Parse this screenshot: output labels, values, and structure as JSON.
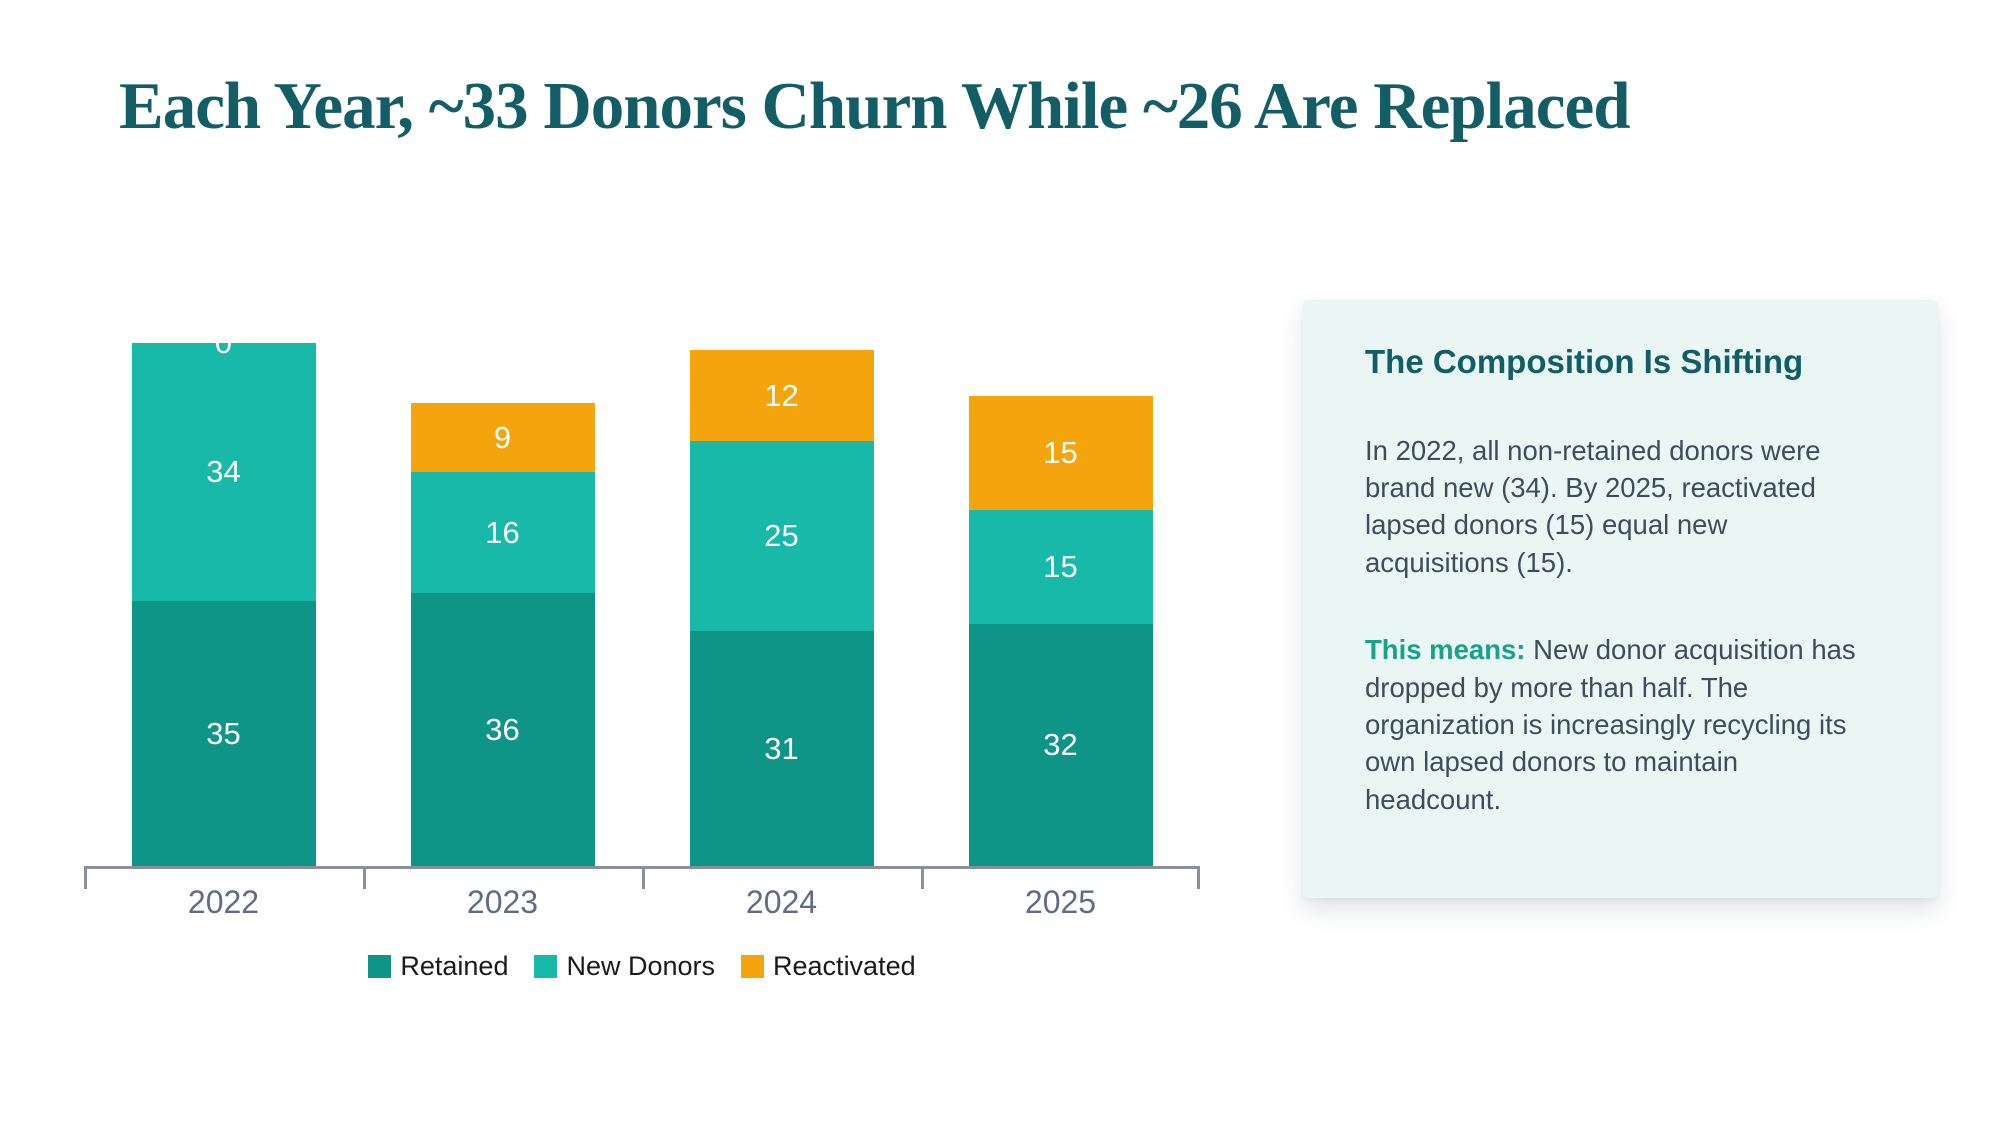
{
  "page": {
    "title": "Each Year, ~33 Donors Churn While ~26 Are Replaced"
  },
  "chart_data": {
    "type": "bar",
    "stacked": true,
    "title": "",
    "xlabel": "",
    "ylabel": "",
    "categories": [
      "2022",
      "2023",
      "2024",
      "2025"
    ],
    "series": [
      {
        "name": "Retained",
        "color": "#0f9488",
        "values": [
          35,
          36,
          31,
          32
        ]
      },
      {
        "name": "New Donors",
        "color": "#19b9a9",
        "values": [
          34,
          16,
          25,
          15
        ]
      },
      {
        "name": "Reactivated",
        "color": "#f4a50d",
        "values": [
          0,
          9,
          12,
          15
        ]
      }
    ],
    "totals": [
      69,
      61,
      68,
      62
    ],
    "ylim": [
      0,
      69
    ],
    "grid": false,
    "y_axis_shown": false,
    "value_labels": {
      "color": "#ffffff",
      "position": "center-of-segment"
    },
    "legend_position": "bottom-center",
    "axis_colors": {
      "line": "#8a909b",
      "tick_labels": "#606c85"
    }
  },
  "panel": {
    "heading": "The Composition Is Shifting",
    "paragraph1": "In 2022, all non-retained donors were brand new (34). By 2025, reactivated lapsed donors (15) equal new acquisitions (15).",
    "paragraph2_lead": "This means:",
    "paragraph2_body": " New donor acquisition has dropped by more than half. The organization is increasingly recycling its own lapsed donors to maintain headcount.",
    "colors": {
      "background": "#e9f6f3",
      "heading": "#135e66",
      "lead": "#18a18d",
      "body_text": "#3f4d5a"
    }
  },
  "title_color": "#135e66"
}
